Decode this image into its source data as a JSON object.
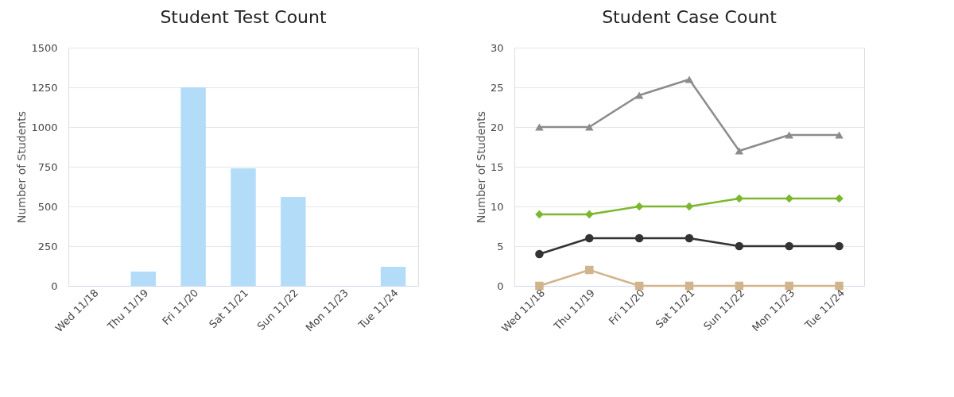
{
  "chart_data": [
    {
      "type": "bar",
      "title": "Student Test Count",
      "ylabel": "Number of Students",
      "categories": [
        "Wed 11/18",
        "Thu 11/19",
        "Fri 11/20",
        "Sat 11/21",
        "Sun 11/22",
        "Mon 11/23",
        "Tue 11/24"
      ],
      "values": [
        0,
        90,
        1250,
        740,
        560,
        0,
        120
      ],
      "color": "#b3dcf9",
      "ylim": [
        0,
        1500
      ],
      "yticks": [
        0,
        250,
        500,
        750,
        1000,
        1250,
        1500
      ],
      "grid": "y"
    },
    {
      "type": "line",
      "title": "Student Case Count",
      "ylabel": "Number of Students",
      "categories": [
        "Wed 11/18",
        "Thu 11/19",
        "Fri 11/20",
        "Sat 11/21",
        "Sun 11/22",
        "Mon 11/23",
        "Tue 11/24"
      ],
      "series": [
        {
          "color": "#8c8c8c",
          "marker": "triangle",
          "values": [
            20,
            20,
            24,
            26,
            17,
            19,
            19
          ]
        },
        {
          "color": "#7cb82f",
          "marker": "diamond",
          "values": [
            9,
            9,
            10,
            10,
            11,
            11,
            11
          ]
        },
        {
          "color": "#333333",
          "marker": "circle",
          "values": [
            4,
            6,
            6,
            6,
            5,
            5,
            5
          ]
        },
        {
          "color": "#d2b48c",
          "marker": "square",
          "values": [
            0,
            2,
            0,
            0,
            0,
            0,
            0
          ]
        }
      ],
      "ylim": [
        0,
        30
      ],
      "yticks": [
        0,
        5,
        10,
        15,
        20,
        25,
        30
      ],
      "grid": "y",
      "line_style": "solid"
    }
  ]
}
